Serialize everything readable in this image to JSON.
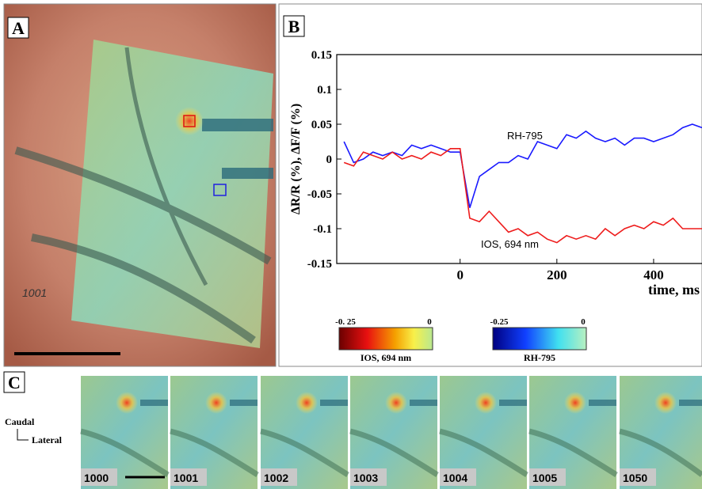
{
  "panel_labels": [
    "A",
    "B",
    "C"
  ],
  "panel_a": {
    "frame_label": "1001"
  },
  "chart_data": {
    "type": "line",
    "x": [
      -240,
      -220,
      -200,
      -180,
      -160,
      -140,
      -120,
      -100,
      -80,
      -60,
      -40,
      -20,
      0,
      20,
      40,
      60,
      80,
      100,
      120,
      140,
      160,
      180,
      200,
      220,
      240,
      260,
      280,
      300,
      320,
      340,
      360,
      380,
      400,
      420,
      440,
      460,
      480,
      500
    ],
    "series": [
      {
        "name": "RH-795",
        "color": "#1a1aff",
        "values": [
          0.025,
          -0.005,
          0.0,
          0.01,
          0.005,
          0.01,
          0.005,
          0.02,
          0.015,
          0.02,
          0.015,
          0.01,
          0.01,
          -0.07,
          -0.025,
          -0.015,
          -0.005,
          -0.005,
          0.005,
          0.0,
          0.025,
          0.02,
          0.015,
          0.035,
          0.03,
          0.04,
          0.03,
          0.025,
          0.03,
          0.02,
          0.03,
          0.03,
          0.025,
          0.03,
          0.035,
          0.045,
          0.05,
          0.045
        ]
      },
      {
        "name": "IOS, 694 nm",
        "color": "#ee1c1c",
        "values": [
          -0.005,
          -0.01,
          0.01,
          0.005,
          0.0,
          0.01,
          0.0,
          0.005,
          0.0,
          0.01,
          0.005,
          0.015,
          0.015,
          -0.085,
          -0.09,
          -0.075,
          -0.09,
          -0.105,
          -0.1,
          -0.11,
          -0.105,
          -0.115,
          -0.12,
          -0.11,
          -0.115,
          -0.11,
          -0.115,
          -0.1,
          -0.11,
          -0.1,
          -0.095,
          -0.1,
          -0.09,
          -0.095,
          -0.085,
          -0.1,
          -0.1,
          -0.1
        ]
      }
    ],
    "xlim": [
      -255,
      500
    ],
    "ylim": [
      -0.15,
      0.15
    ],
    "xticks": [
      0,
      200,
      400
    ],
    "yticks": [
      0.15,
      0.1,
      0.05,
      0,
      -0.05,
      -0.1,
      -0.15
    ],
    "xlabel": "time, ms",
    "ylabel": "ΔR/R (%), ΔF/F (%)"
  },
  "colorbars": [
    {
      "min_label": "-0. 25",
      "max_label": "0",
      "label": "IOS, 694 nm"
    },
    {
      "min_label": "-0.25",
      "max_label": "0",
      "label": "RH-795"
    }
  ],
  "panel_c": {
    "orientation": [
      "Caudal",
      "Lateral"
    ],
    "frames": [
      "1000",
      "1001",
      "1002",
      "1003",
      "1004",
      "1005",
      "1050"
    ]
  }
}
